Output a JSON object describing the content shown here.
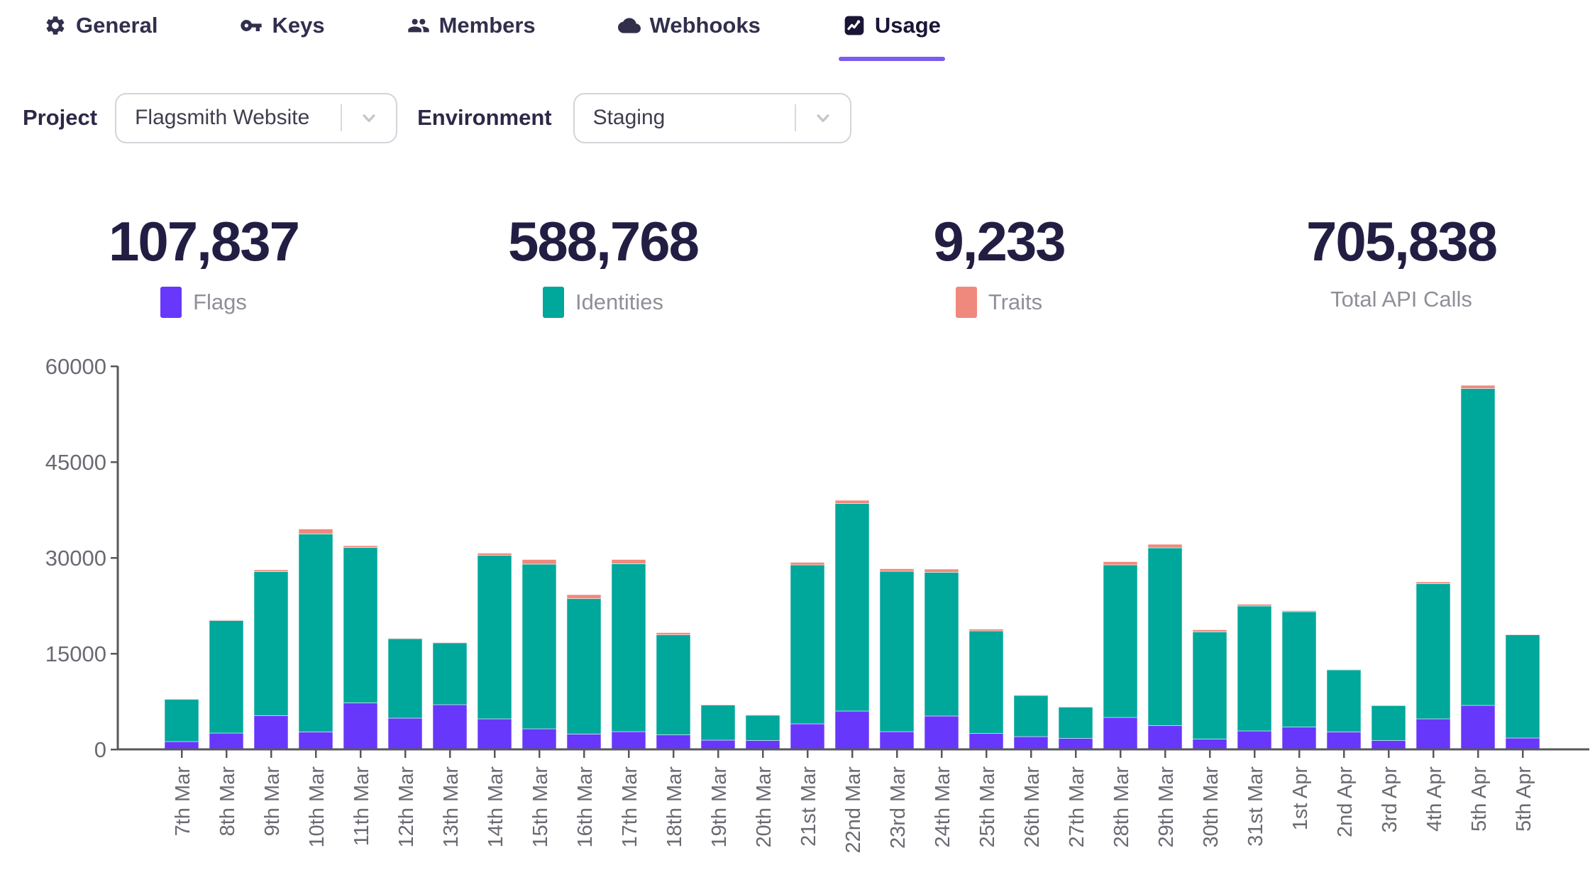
{
  "tabs": [
    {
      "label": "General",
      "icon": "gear-icon",
      "active": false
    },
    {
      "label": "Keys",
      "icon": "key-icon",
      "active": false
    },
    {
      "label": "Members",
      "icon": "members-icon",
      "active": false
    },
    {
      "label": "Webhooks",
      "icon": "cloud-icon",
      "active": false
    },
    {
      "label": "Usage",
      "icon": "chart-icon",
      "active": true
    }
  ],
  "controls": {
    "project_label": "Project",
    "project_value": "Flagsmith Website",
    "environment_label": "Environment",
    "environment_value": "Staging"
  },
  "stats": [
    {
      "value": "107,837",
      "label": "Flags",
      "swatch": "#6837fc"
    },
    {
      "value": "588,768",
      "label": "Identities",
      "swatch": "#00a79b"
    },
    {
      "value": "9,233",
      "label": "Traits",
      "swatch": "#f0897d"
    },
    {
      "value": "705,838",
      "label": "Total API Calls",
      "swatch": null
    }
  ],
  "chart_data": {
    "type": "bar",
    "stacked": true,
    "categories": [
      "7th Mar",
      "8th Mar",
      "9th Mar",
      "10th Mar",
      "11th Mar",
      "12th Mar",
      "13th Mar",
      "14th Mar",
      "15th Mar",
      "16th Mar",
      "17th Mar",
      "18th Mar",
      "19th Mar",
      "20th Mar",
      "21st Mar",
      "22nd Mar",
      "23rd Mar",
      "24th Mar",
      "25th Mar",
      "26th Mar",
      "27th Mar",
      "28th Mar",
      "29th Mar",
      "30th Mar",
      "31st Mar",
      "1st Apr",
      "2nd Apr",
      "3rd Apr",
      "4th Apr",
      "5th Apr",
      "5th Apr"
    ],
    "series": [
      {
        "name": "Flags",
        "color": "#6837fc",
        "values": [
          1250,
          2550,
          5300,
          2700,
          7300,
          4900,
          7000,
          4800,
          3200,
          2400,
          2800,
          2300,
          1437,
          1400,
          4000,
          6000,
          2800,
          5200,
          2500,
          2000,
          1700,
          5000,
          3700,
          1600,
          2900,
          3500,
          2700,
          1400,
          4800,
          6900,
          1800
        ]
      },
      {
        "name": "Identities",
        "color": "#00a79b",
        "values": [
          6570,
          17630,
          22550,
          31040,
          24300,
          12460,
          9710,
          25600,
          25800,
          21230,
          26270,
          15620,
          5533,
          3970,
          24880,
          32500,
          25080,
          22500,
          16050,
          6460,
          4920,
          23877,
          27840,
          16770,
          19520,
          18040,
          9738,
          5470,
          21120,
          49600,
          16120
        ]
      },
      {
        "name": "Traits",
        "color": "#f0897d",
        "values": [
          80,
          120,
          250,
          760,
          300,
          40,
          40,
          300,
          700,
          570,
          630,
          380,
          30,
          30,
          420,
          500,
          420,
          500,
          300,
          40,
          30,
          523,
          560,
          330,
          280,
          160,
          50,
          30,
          280,
          500,
          80
        ]
      }
    ],
    "title": "",
    "xlabel": "",
    "ylabel": "",
    "ylim": [
      0,
      60000
    ],
    "yticks": [
      0,
      15000,
      30000,
      45000,
      60000
    ],
    "grid": false,
    "legend_position": "none"
  },
  "colors": {
    "accent": "#7d5cf0",
    "flags": "#6837fc",
    "identities": "#00a79b",
    "traits": "#f0897d",
    "text_dark": "#221e43",
    "text_gray": "#8f8f99",
    "axis_line": "#58585c",
    "axis_text": "#6a6a72",
    "border": "#d4d4da"
  }
}
